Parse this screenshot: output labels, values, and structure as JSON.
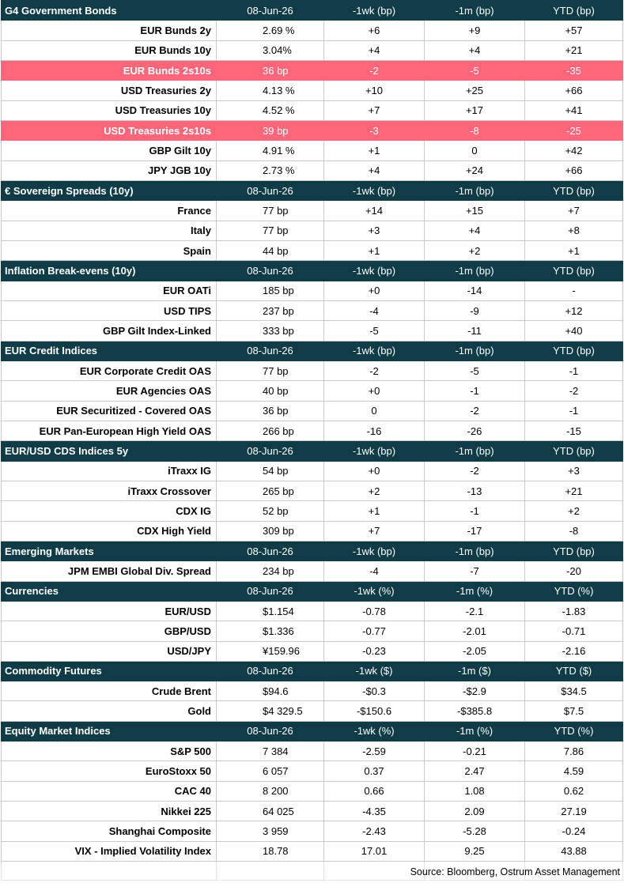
{
  "sections": [
    {
      "header": {
        "title": "G4 Government Bonds",
        "date": "08-Jun-26",
        "c1": "-1wk (bp)",
        "c2": "-1m (bp)",
        "c3": "YTD (bp)"
      },
      "rows": [
        {
          "name": "EUR Bunds 2y",
          "value": "2.69 %",
          "w1": "+6",
          "m1": "+9",
          "ytd": "+57",
          "highlight": false
        },
        {
          "name": "EUR Bunds 10y",
          "value": "3.04%",
          "w1": "+4",
          "m1": "+4",
          "ytd": "+21",
          "highlight": false
        },
        {
          "name": "EUR Bunds 2s10s",
          "value": "36 bp",
          "w1": "-2",
          "m1": "-5",
          "ytd": "-35",
          "highlight": true
        },
        {
          "name": "USD Treasuries 2y",
          "value": "4.13 %",
          "w1": "+10",
          "m1": "+25",
          "ytd": "+66",
          "highlight": false
        },
        {
          "name": "USD Treasuries 10y",
          "value": "4.52 %",
          "w1": "+7",
          "m1": "+17",
          "ytd": "+41",
          "highlight": false
        },
        {
          "name": "USD Treasuries 2s10s",
          "value": "39 bp",
          "w1": "-3",
          "m1": "-8",
          "ytd": "-25",
          "highlight": true
        },
        {
          "name": "GBP Gilt 10y",
          "value": "4.91 %",
          "w1": "+1",
          "m1": "0",
          "ytd": "+42",
          "highlight": false
        },
        {
          "name": "JPY JGB  10y",
          "value": "2.73 %",
          "w1": "+4",
          "m1": "+24",
          "ytd": "+66",
          "highlight": false
        }
      ]
    },
    {
      "header": {
        "title": "€ Sovereign Spreads (10y)",
        "date": "08-Jun-26",
        "c1": "-1wk (bp)",
        "c2": "-1m (bp)",
        "c3": "YTD (bp)"
      },
      "rows": [
        {
          "name": "France",
          "value": "77 bp",
          "w1": "+14",
          "m1": "+15",
          "ytd": "+7",
          "highlight": false
        },
        {
          "name": "Italy",
          "value": "77 bp",
          "w1": "+3",
          "m1": "+4",
          "ytd": "+8",
          "highlight": false
        },
        {
          "name": "Spain",
          "value": "44 bp",
          "w1": "+1",
          "m1": "+2",
          "ytd": "+1",
          "highlight": false
        }
      ]
    },
    {
      "header": {
        "title": " Inflation Break-evens (10y)",
        "date": "08-Jun-26",
        "c1": "-1wk (bp)",
        "c2": "-1m (bp)",
        "c3": "YTD (bp)"
      },
      "rows": [
        {
          "name": "EUR OATi",
          "value": "185 bp",
          "w1": "+0",
          "m1": "-14",
          "ytd": "-",
          "highlight": false
        },
        {
          "name": "USD TIPS",
          "value": "237 bp",
          "w1": "-4",
          "m1": "-9",
          "ytd": "+12",
          "highlight": false
        },
        {
          "name": "GBP Gilt Index-Linked",
          "value": "333 bp",
          "w1": "-5",
          "m1": "-11",
          "ytd": "+40",
          "highlight": false
        }
      ]
    },
    {
      "header": {
        "title": "EUR Credit Indices",
        "date": "08-Jun-26",
        "c1": "-1wk (bp)",
        "c2": "-1m (bp)",
        "c3": "YTD (bp)"
      },
      "rows": [
        {
          "name": "EUR Corporate Credit OAS",
          "value": "77 bp",
          "w1": "-2",
          "m1": "-5",
          "ytd": "-1",
          "highlight": false
        },
        {
          "name": "EUR Agencies OAS",
          "value": "40 bp",
          "w1": "+0",
          "m1": "-1",
          "ytd": "-2",
          "highlight": false
        },
        {
          "name": "EUR Securitized - Covered OAS",
          "value": "36 bp",
          "w1": "0",
          "m1": "-2",
          "ytd": "-1",
          "highlight": false
        },
        {
          "name": "EUR Pan-European High Yield OAS",
          "value": "266 bp",
          "w1": "-16",
          "m1": "-26",
          "ytd": "-15",
          "highlight": false
        }
      ]
    },
    {
      "header": {
        "title": "EUR/USD CDS Indices 5y",
        "date": "08-Jun-26",
        "c1": "-1wk (bp)",
        "c2": "-1m (bp)",
        "c3": "YTD (bp)"
      },
      "rows": [
        {
          "name": "iTraxx IG",
          "value": "54 bp",
          "w1": "+0",
          "m1": "-2",
          "ytd": "+3",
          "highlight": false
        },
        {
          "name": "iTraxx Crossover",
          "value": "265 bp",
          "w1": "+2",
          "m1": "-13",
          "ytd": "+21",
          "highlight": false
        },
        {
          "name": "CDX IG",
          "value": "52 bp",
          "w1": "+1",
          "m1": "-1",
          "ytd": "+2",
          "highlight": false
        },
        {
          "name": "CDX High Yield",
          "value": "309 bp",
          "w1": "+7",
          "m1": "-17",
          "ytd": "-8",
          "highlight": false
        }
      ]
    },
    {
      "header": {
        "title": "Emerging Markets",
        "date": "08-Jun-26",
        "c1": "-1wk (bp)",
        "c2": "-1m (bp)",
        "c3": "YTD (bp)"
      },
      "rows": [
        {
          "name": "JPM EMBI Global Div. Spread",
          "value": "234 bp",
          "w1": "-4",
          "m1": "-7",
          "ytd": "-20",
          "highlight": false
        }
      ]
    },
    {
      "header": {
        "title": "Currencies",
        "date": "08-Jun-26",
        "c1": "-1wk (%)",
        "c2": "-1m (%)",
        "c3": "YTD (%)"
      },
      "rows": [
        {
          "name": "EUR/USD",
          "value": "$1.154",
          "w1": "-0.78",
          "m1": "-2.1",
          "ytd": "-1.83",
          "highlight": false
        },
        {
          "name": "GBP/USD",
          "value": "$1.336",
          "w1": "-0.77",
          "m1": "-2.01",
          "ytd": "-0.71",
          "highlight": false
        },
        {
          "name": "USD/JPY",
          "value": "¥159.96",
          "w1": "-0.23",
          "m1": "-2.05",
          "ytd": "-2.16",
          "highlight": false
        }
      ]
    },
    {
      "header": {
        "title": "Commodity Futures",
        "date": "08-Jun-26",
        "c1": "-1wk ($)",
        "c2": "-1m ($)",
        "c3": "YTD ($)"
      },
      "rows": [
        {
          "name": "Crude Brent",
          "value": "$94.6",
          "w1": "-$0.3",
          "m1": "-$2.9",
          "ytd": "$34.5",
          "highlight": false
        },
        {
          "name": "Gold",
          "value": "$4 329.5",
          "w1": "-$150.6",
          "m1": "-$385.8",
          "ytd": "$7.5",
          "highlight": false
        }
      ]
    },
    {
      "header": {
        "title": "Equity Market Indices",
        "date": "08-Jun-26",
        "c1": "-1wk (%)",
        "c2": "-1m (%)",
        "c3": "YTD (%)"
      },
      "rows": [
        {
          "name": "S&P 500",
          "value": "7 384",
          "w1": "-2.59",
          "m1": "-0.21",
          "ytd": "7.86",
          "highlight": false
        },
        {
          "name": "EuroStoxx 50",
          "value": "6 057",
          "w1": "0.37",
          "m1": "2.47",
          "ytd": "4.59",
          "highlight": false
        },
        {
          "name": "CAC 40",
          "value": "8 200",
          "w1": "0.66",
          "m1": "1.08",
          "ytd": "0.62",
          "highlight": false
        },
        {
          "name": "Nikkei 225",
          "value": "64 025",
          "w1": "-4.35",
          "m1": "2.09",
          "ytd": "27.19",
          "highlight": false
        },
        {
          "name": "Shanghai Composite",
          "value": "3 959",
          "w1": "-2.43",
          "m1": "-5.28",
          "ytd": "-0.24",
          "highlight": false
        },
        {
          "name": "VIX - Implied Volatility Index",
          "value": "18.78",
          "w1": "17.01",
          "m1": "9.25",
          "ytd": "43.88",
          "highlight": false
        }
      ]
    }
  ],
  "source": "Source: Bloomberg, Ostrum Asset Management",
  "colors": {
    "header_bg": "#0f3c46",
    "header_text": "#ffffff",
    "highlight_bg": "#ff667a",
    "highlight_text": "#ffffff"
  }
}
